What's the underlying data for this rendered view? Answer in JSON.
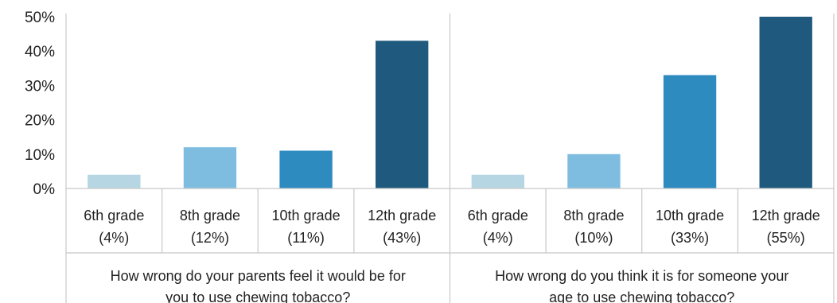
{
  "chart_data": {
    "type": "bar",
    "ylim": [
      0,
      50
    ],
    "y_ticks": [
      "0%",
      "10%",
      "20%",
      "30%",
      "40%",
      "50%"
    ],
    "grid": false,
    "legend": "none",
    "groups": [
      {
        "label_lines": [
          "How wrong do your parents feel it would be for",
          "you to use chewing tobacco?"
        ],
        "categories": [
          {
            "line1": "6th grade",
            "line2": "(4%)",
            "value": 4,
            "color": "#b7d6e3"
          },
          {
            "line1": "8th grade",
            "line2": "(12%)",
            "value": 12,
            "color": "#7fbde0"
          },
          {
            "line1": "10th grade",
            "line2": "(11%)",
            "value": 11,
            "color": "#2e8bc0"
          },
          {
            "line1": "12th grade",
            "line2": "(43%)",
            "value": 43,
            "color": "#1f5a7e"
          }
        ]
      },
      {
        "label_lines": [
          "How wrong do you think it is for someone your",
          "age to use chewing tobacco?"
        ],
        "categories": [
          {
            "line1": "6th grade",
            "line2": "(4%)",
            "value": 4,
            "color": "#b7d6e3"
          },
          {
            "line1": "8th grade",
            "line2": "(10%)",
            "value": 10,
            "color": "#7fbde0"
          },
          {
            "line1": "10th grade",
            "line2": "(33%)",
            "value": 33,
            "color": "#2e8bc0"
          },
          {
            "line1": "12th grade",
            "line2": "(55%)",
            "value": 55,
            "color": "#1f5a7e"
          }
        ]
      }
    ]
  }
}
